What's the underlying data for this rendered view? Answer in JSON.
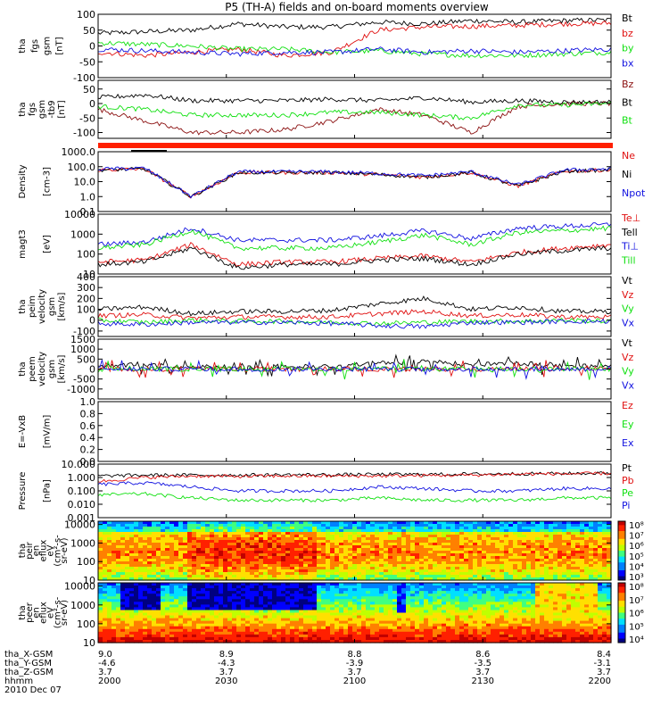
{
  "title": "P5 (TH-A) fields and on-board moments overview",
  "colors": {
    "black": "#000000",
    "red": "#e01010",
    "green": "#10e010",
    "blue": "#1010e0",
    "darkred": "#8b1010",
    "orange_bar": "#ff2000"
  },
  "chart_data": [
    {
      "type": "line",
      "panel": "fgs",
      "ylabel": [
        "tha",
        "fgs",
        "gsm",
        "[nT]"
      ],
      "ylim": [
        -100,
        100
      ],
      "ticks": [
        "100",
        "50",
        "0",
        "-50",
        "-100"
      ],
      "series": [
        {
          "name": "Bt",
          "color": "black",
          "levels": [
            40,
            45,
            50,
            70,
            60,
            60,
            75,
            70,
            80,
            75,
            80,
            82
          ]
        },
        {
          "name": "bz",
          "color": "red",
          "levels": [
            -20,
            -30,
            -20,
            -10,
            -30,
            -20,
            50,
            60,
            62,
            65,
            70,
            72
          ]
        },
        {
          "name": "by",
          "color": "green",
          "levels": [
            10,
            5,
            0,
            -10,
            -10,
            -20,
            -15,
            -25,
            -30,
            -30,
            -25,
            -20
          ]
        },
        {
          "name": "bx",
          "color": "blue",
          "levels": [
            -10,
            -15,
            -20,
            -25,
            -20,
            -20,
            -10,
            -20,
            -15,
            -20,
            -15,
            -10
          ]
        }
      ]
    },
    {
      "type": "line",
      "panel": "fgs-gse",
      "ylabel": [
        "tha",
        "fgs",
        "gsm",
        "-tb9",
        "[nT]"
      ],
      "ylim": [
        -120,
        80
      ],
      "ticks": [
        "50",
        "0",
        "-50",
        "-100"
      ],
      "series": [
        {
          "name": "Bz",
          "color": "darkred",
          "levels": [
            -20,
            -60,
            -100,
            -100,
            -90,
            -60,
            -20,
            -40,
            -100,
            -10,
            0,
            0
          ]
        },
        {
          "name": "Bt",
          "color": "black",
          "levels": [
            20,
            30,
            10,
            10,
            10,
            15,
            10,
            20,
            5,
            10,
            5,
            5
          ]
        },
        {
          "name": "Bt",
          "color": "green",
          "levels": [
            -10,
            -20,
            -40,
            -40,
            -40,
            -30,
            -30,
            -40,
            -50,
            -5,
            -5,
            0
          ]
        }
      ]
    },
    {
      "type": "line",
      "panel": "density",
      "ylabel": [
        "Density",
        "[cm-3]"
      ],
      "ylog": true,
      "ylim": [
        0.1,
        1000
      ],
      "ticks": [
        "1000.0",
        "100.0",
        "10.0",
        "1.0",
        "0.1"
      ],
      "series": [
        {
          "name": "Ne",
          "color": "red",
          "levels": [
            60,
            70,
            1,
            40,
            40,
            40,
            30,
            20,
            40,
            5,
            50,
            60
          ]
        },
        {
          "name": "Ni",
          "color": "black",
          "levels": [
            60,
            70,
            1,
            40,
            40,
            40,
            30,
            20,
            40,
            5,
            50,
            60
          ]
        },
        {
          "name": "Npot",
          "color": "blue",
          "levels": [
            70,
            80,
            1,
            45,
            45,
            45,
            35,
            25,
            45,
            6,
            60,
            70
          ]
        }
      ]
    },
    {
      "type": "line",
      "panel": "temperature",
      "ylabel": [
        "magt3",
        "[eV]"
      ],
      "ylog": true,
      "ylim": [
        10,
        10000
      ],
      "ticks": [
        "10000",
        "1000",
        "100",
        "10"
      ],
      "series": [
        {
          "name": "Te⊥",
          "color": "red",
          "levels": [
            40,
            50,
            300,
            30,
            40,
            40,
            60,
            80,
            40,
            120,
            200,
            300
          ]
        },
        {
          "name": "Tell",
          "color": "black",
          "levels": [
            30,
            40,
            200,
            20,
            30,
            30,
            50,
            60,
            30,
            100,
            150,
            200
          ]
        },
        {
          "name": "Ti⊥",
          "color": "blue",
          "levels": [
            300,
            400,
            2000,
            500,
            500,
            500,
            800,
            1500,
            600,
            2000,
            2500,
            3000
          ]
        },
        {
          "name": "Till",
          "color": "green",
          "levels": [
            200,
            300,
            1500,
            200,
            200,
            200,
            400,
            900,
            300,
            1200,
            1500,
            2000
          ]
        }
      ]
    },
    {
      "type": "line",
      "panel": "peim-velocity",
      "ylabel": [
        "tha",
        "peim",
        "velocity",
        "gsm",
        "[km/s]"
      ],
      "ylim": [
        -150,
        400
      ],
      "ticks": [
        "400",
        "300",
        "200",
        "100",
        "0",
        "-100"
      ],
      "series": [
        {
          "name": "Vt",
          "color": "black",
          "levels": [
            100,
            120,
            60,
            80,
            80,
            90,
            150,
            200,
            100,
            120,
            80,
            80
          ]
        },
        {
          "name": "Vz",
          "color": "red",
          "levels": [
            40,
            50,
            20,
            30,
            30,
            30,
            60,
            80,
            40,
            50,
            30,
            30
          ]
        },
        {
          "name": "Vy",
          "color": "green",
          "levels": [
            0,
            -20,
            0,
            -10,
            -10,
            -20,
            -30,
            -20,
            -10,
            -10,
            0,
            -10
          ]
        },
        {
          "name": "Vx",
          "color": "blue",
          "levels": [
            -30,
            -40,
            -20,
            -20,
            -20,
            -30,
            -50,
            -60,
            -20,
            -20,
            -10,
            -10
          ]
        }
      ]
    },
    {
      "type": "line",
      "panel": "peem-velocity",
      "ylabel": [
        "tha",
        "peem",
        "velocity",
        "gsm",
        "[km/s]"
      ],
      "ylim": [
        -1500,
        1500
      ],
      "ticks": [
        "1500",
        "1000",
        "500",
        "0",
        "-500",
        "-1000"
      ],
      "series": [
        {
          "name": "Vt",
          "color": "black",
          "levels": [
            150,
            200,
            100,
            100,
            100,
            150,
            300,
            400,
            200,
            300,
            150,
            150
          ]
        },
        {
          "name": "Vz",
          "color": "red",
          "levels": [
            0,
            0,
            0,
            0,
            0,
            0,
            0,
            0,
            0,
            0,
            0,
            0
          ]
        },
        {
          "name": "Vy",
          "color": "green",
          "levels": [
            0,
            0,
            0,
            0,
            0,
            0,
            0,
            0,
            0,
            0,
            0,
            0
          ]
        },
        {
          "name": "Vx",
          "color": "blue",
          "levels": [
            0,
            0,
            0,
            0,
            0,
            0,
            0,
            0,
            0,
            0,
            0,
            0
          ]
        }
      ]
    },
    {
      "type": "line",
      "panel": "efield",
      "ylabel": [
        "E=-VxB",
        "[mV/m]"
      ],
      "ylim": [
        0,
        1
      ],
      "ticks": [
        "1.0",
        "0.8",
        "0.6",
        "0.4",
        "0.2",
        "0.0"
      ],
      "series": [
        {
          "name": "Ez",
          "color": "red"
        },
        {
          "name": "Ey",
          "color": "green"
        },
        {
          "name": "Ex",
          "color": "blue"
        }
      ]
    },
    {
      "type": "line",
      "panel": "pressure",
      "ylabel": [
        "Pressure",
        "[nPa]"
      ],
      "ylog": true,
      "ylim": [
        0.001,
        10
      ],
      "ticks": [
        "10.000",
        "1.000",
        "0.100",
        "0.010",
        "0.001"
      ],
      "series": [
        {
          "name": "Pt",
          "color": "black",
          "levels": [
            1.3,
            1.5,
            1.5,
            1.5,
            1.6,
            1.6,
            1.7,
            1.7,
            1.8,
            1.9,
            2.0,
            2.1
          ]
        },
        {
          "name": "Pb",
          "color": "red",
          "levels": [
            0.5,
            1.0,
            1.3,
            1.2,
            1.3,
            1.3,
            1.3,
            1.4,
            1.5,
            1.8,
            1.9,
            2.0
          ]
        },
        {
          "name": "Pe",
          "color": "green",
          "levels": [
            0.05,
            0.06,
            0.03,
            0.02,
            0.02,
            0.02,
            0.03,
            0.02,
            0.02,
            0.02,
            0.03,
            0.03
          ]
        },
        {
          "name": "Pi",
          "color": "blue",
          "levels": [
            0.3,
            0.4,
            0.2,
            0.1,
            0.1,
            0.1,
            0.2,
            0.15,
            0.1,
            0.1,
            0.15,
            0.15
          ]
        }
      ]
    },
    {
      "type": "heatmap",
      "panel": "peir",
      "ylabel": [
        "tha",
        "peir",
        "en",
        "eflux",
        "eV",
        "(cm²-s-",
        "sr-eV)"
      ],
      "ylog": true,
      "ylim": [
        10,
        15000
      ],
      "ticks": [
        "10000",
        "1000",
        "100",
        "10"
      ],
      "colorbar": [
        "10⁸",
        "10⁷",
        "10⁶",
        "10⁵",
        "10⁴",
        "10³"
      ]
    },
    {
      "type": "heatmap",
      "panel": "peer",
      "ylabel": [
        "tha",
        "peer",
        "en",
        "eflux",
        "eV",
        "(cm²-s-",
        "sr-eV)"
      ],
      "ylog": true,
      "ylim": [
        10,
        15000
      ],
      "ticks": [
        "10000",
        "1000",
        "100",
        "10"
      ],
      "colorbar": [
        "10⁸",
        "10⁷",
        "10⁶",
        "10⁵",
        "10⁴"
      ]
    }
  ],
  "xaxis": {
    "rows": [
      {
        "label": "tha_X-GSM",
        "values": [
          "9.0",
          "8.9",
          "8.8",
          "8.6",
          "8.4"
        ]
      },
      {
        "label": "tha_Y-GSM",
        "values": [
          "-4.6",
          "-4.3",
          "-3.9",
          "-3.5",
          "-3.1"
        ]
      },
      {
        "label": "tha_Z-GSM",
        "values": [
          "3.7",
          "3.7",
          "3.7",
          "3.7",
          "3.7"
        ]
      },
      {
        "label": "hhmm",
        "values": [
          "2000",
          "2030",
          "2100",
          "2130",
          "2200"
        ]
      }
    ],
    "date": "2010 Dec 07"
  }
}
